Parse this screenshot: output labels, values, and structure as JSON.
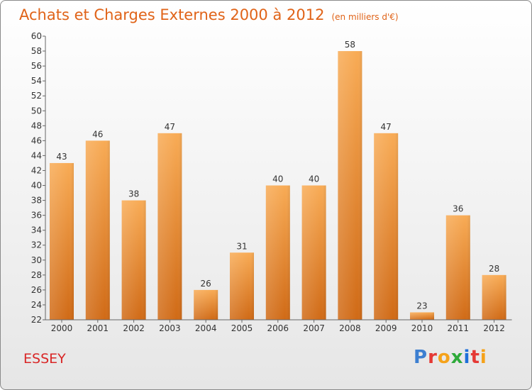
{
  "title": "Achats et Charges Externes 2000 à 2012",
  "unit": "(en milliers d'€)",
  "city": "ESSEY",
  "logo": "Proxiti",
  "colors": {
    "bar_light": "#f7a953",
    "bar_dark": "#d06a16",
    "title": "#e06318",
    "city": "#d92727"
  },
  "chart_data": {
    "type": "bar",
    "title": "Achats et Charges Externes 2000 à 2012",
    "categories": [
      "2000",
      "2001",
      "2002",
      "2003",
      "2004",
      "2005",
      "2006",
      "2007",
      "2008",
      "2009",
      "2010",
      "2011",
      "2012"
    ],
    "values": [
      43,
      46,
      38,
      47,
      26,
      31,
      40,
      40,
      58,
      47,
      23,
      36,
      28
    ],
    "ylim": [
      22,
      60
    ],
    "yticks": [
      22,
      24,
      26,
      28,
      30,
      32,
      34,
      36,
      38,
      40,
      42,
      44,
      46,
      48,
      50,
      52,
      54,
      56,
      58,
      60
    ],
    "grid": false,
    "xlabel": "",
    "ylabel": ""
  }
}
